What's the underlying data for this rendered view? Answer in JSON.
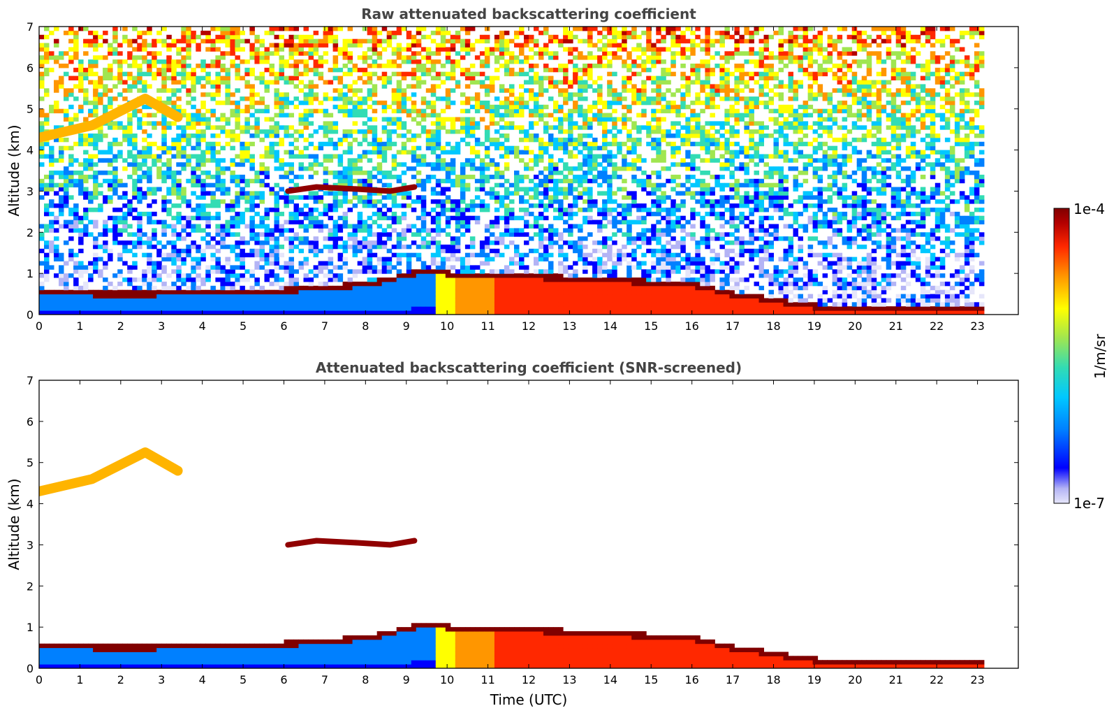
{
  "chart_data": [
    {
      "type": "heatmap",
      "title": "Raw attenuated backscattering coefficient",
      "xlabel": "",
      "ylabel": "Altitude (km)",
      "xlim": [
        0,
        24
      ],
      "ylim": [
        0,
        7
      ],
      "x_ticks": [
        "0",
        "1",
        "2",
        "3",
        "4",
        "5",
        "6",
        "7",
        "8",
        "9",
        "10",
        "11",
        "12",
        "13",
        "14",
        "15",
        "16",
        "17",
        "18",
        "19",
        "20",
        "21",
        "22",
        "23"
      ],
      "y_ticks": [
        "0",
        "1",
        "2",
        "3",
        "4",
        "5",
        "6",
        "7"
      ],
      "data_end_time": 23.1,
      "noise": "high",
      "features": [
        {
          "name": "boundary layer top",
          "points": [
            [
              0,
              0.55
            ],
            [
              2,
              0.5
            ],
            [
              4,
              0.55
            ],
            [
              6,
              0.6
            ],
            [
              8,
              0.75
            ],
            [
              9.5,
              1.1
            ],
            [
              10,
              1.0
            ],
            [
              12,
              0.93
            ],
            [
              14,
              0.85
            ],
            [
              16,
              0.72
            ],
            [
              17,
              0.5
            ],
            [
              18,
              0.35
            ],
            [
              19,
              0.2
            ],
            [
              23.1,
              0.18
            ]
          ]
        },
        {
          "name": "mid-level cloud",
          "points": [
            [
              6.1,
              3.0
            ],
            [
              6.8,
              3.1
            ],
            [
              7.8,
              3.05
            ],
            [
              8.6,
              3.0
            ],
            [
              9.2,
              3.1
            ]
          ]
        },
        {
          "name": "upper layer",
          "points": [
            [
              0,
              4.3
            ],
            [
              1.3,
              4.6
            ],
            [
              2.6,
              5.25
            ],
            [
              3.4,
              4.8
            ]
          ]
        }
      ]
    },
    {
      "type": "heatmap",
      "title": "Attenuated backscattering coefficient (SNR-screened)",
      "xlabel": "Time (UTC)",
      "ylabel": "Altitude (km)",
      "xlim": [
        0,
        24
      ],
      "ylim": [
        0,
        7
      ],
      "x_ticks": [
        "0",
        "1",
        "2",
        "3",
        "4",
        "5",
        "6",
        "7",
        "8",
        "9",
        "10",
        "11",
        "12",
        "13",
        "14",
        "15",
        "16",
        "17",
        "18",
        "19",
        "20",
        "21",
        "22",
        "23"
      ],
      "y_ticks": [
        "0",
        "1",
        "2",
        "3",
        "4",
        "5",
        "6",
        "7"
      ],
      "data_end_time": 23.1,
      "noise": "none"
    }
  ],
  "colorbar": {
    "label": "1/m/sr",
    "max_label": "1e-4",
    "min_label": "1e-7",
    "scale": "log",
    "range": [
      1e-07,
      0.0001
    ],
    "colormap": [
      "#e6e6fa",
      "#b4b4f5",
      "#0000ff",
      "#0080ff",
      "#00c8ff",
      "#32dcb4",
      "#a0e650",
      "#ffff00",
      "#ff9600",
      "#ff2800",
      "#b40000",
      "#800000"
    ]
  }
}
